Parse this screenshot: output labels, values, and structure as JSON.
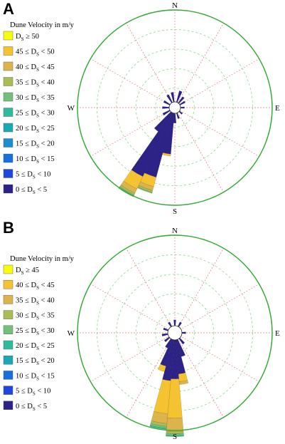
{
  "chart_data": [
    {
      "type": "rose",
      "panel_label": "A",
      "compass": {
        "north": "N",
        "east": "E",
        "south": "S",
        "west": "W"
      },
      "legend": {
        "title": "Dune Velocity in m/y",
        "placement": "left",
        "bins": [
          {
            "pre": "",
            "post": " ≥ 50",
            "color": "#f9fb0e"
          },
          {
            "pre": "45 ≤ ",
            "post": " < 50",
            "color": "#f5c232"
          },
          {
            "pre": "40 ≤ ",
            "post": " < 45",
            "color": "#dcb44b"
          },
          {
            "pre": "35 ≤ ",
            "post": " < 40",
            "color": "#a9bc55"
          },
          {
            "pre": "30 ≤ ",
            "post": " < 35",
            "color": "#72c07a"
          },
          {
            "pre": "25 ≤ ",
            "post": " < 30",
            "color": "#31b99e"
          },
          {
            "pre": "20 ≤ ",
            "post": " < 25",
            "color": "#19a8b5"
          },
          {
            "pre": "15 ≤ ",
            "post": " < 20",
            "color": "#1a8fd0"
          },
          {
            "pre": "10 ≤ ",
            "post": " < 15",
            "color": "#1671dc"
          },
          {
            "pre": "5 ≤ ",
            "post": " < 10",
            "color": "#1f47de"
          },
          {
            "pre": "0 ≤ ",
            "post": " < 5",
            "color": "#2c2287"
          }
        ]
      },
      "rmax": 100,
      "rings": [
        20,
        40,
        60,
        80
      ],
      "bar_width_deg": 10,
      "series": [
        {
          "dir": 20,
          "segs": [
            [
              0,
              12
            ]
          ]
        },
        {
          "dir": 40,
          "segs": [
            [
              0,
              8
            ]
          ]
        },
        {
          "dir": 60,
          "segs": [
            [
              0,
              6
            ]
          ]
        },
        {
          "dir": 90,
          "segs": [
            [
              0,
              4
            ]
          ]
        },
        {
          "dir": 130,
          "segs": [
            [
              0,
              4
            ]
          ]
        },
        {
          "dir": 160,
          "segs": [
            [
              0,
              6
            ]
          ]
        },
        {
          "dir": 180,
          "segs": [
            [
              0,
              10
            ]
          ]
        },
        {
          "dir": 190,
          "segs": [
            [
              0,
              42
            ],
            [
              9,
              2
            ]
          ]
        },
        {
          "dir": 200,
          "segs": [
            [
              0,
              68
            ],
            [
              9,
              10
            ],
            [
              8,
              4
            ],
            [
              7,
              2
            ],
            [
              6,
              1
            ]
          ]
        },
        {
          "dir": 210,
          "segs": [
            [
              0,
              72
            ],
            [
              9,
              14
            ],
            [
              8,
              5
            ],
            [
              7,
              2
            ],
            [
              6,
              2
            ]
          ]
        },
        {
          "dir": 220,
          "segs": [
            [
              0,
              24
            ]
          ]
        },
        {
          "dir": 240,
          "segs": [
            [
              0,
              8
            ]
          ]
        },
        {
          "dir": 270,
          "segs": [
            [
              0,
              7
            ]
          ]
        },
        {
          "dir": 300,
          "segs": [
            [
              0,
              7
            ]
          ]
        },
        {
          "dir": 330,
          "segs": [
            [
              0,
              9
            ]
          ]
        },
        {
          "dir": 350,
          "segs": [
            [
              0,
              10
            ]
          ]
        }
      ]
    },
    {
      "type": "rose",
      "panel_label": "B",
      "compass": {
        "north": "N",
        "east": "E",
        "south": "S",
        "west": "W"
      },
      "legend": {
        "title": "Dune Velocity in m/y",
        "placement": "left",
        "bins": [
          {
            "pre": "",
            "post": " ≥ 45",
            "color": "#f9fb0e"
          },
          {
            "pre": "40 ≤ ",
            "post": " < 45",
            "color": "#f5c232"
          },
          {
            "pre": "35 ≤ ",
            "post": " < 40",
            "color": "#dcb44b"
          },
          {
            "pre": "30 ≤ ",
            "post": " < 35",
            "color": "#a9bc55"
          },
          {
            "pre": "25 ≤ ",
            "post": " < 30",
            "color": "#72c07a"
          },
          {
            "pre": "20 ≤ ",
            "post": " < 25",
            "color": "#31b99e"
          },
          {
            "pre": "15 ≤ ",
            "post": " < 20",
            "color": "#19a8b5"
          },
          {
            "pre": "10 ≤ ",
            "post": " < 15",
            "color": "#1671dc"
          },
          {
            "pre": "5 ≤ ",
            "post": " < 10",
            "color": "#1f47de"
          },
          {
            "pre": "0 ≤ ",
            "post": " < 5",
            "color": "#2c2287"
          }
        ]
      },
      "rmax": 100,
      "rings": [
        20,
        40,
        60,
        80
      ],
      "bar_width_deg": 10,
      "series": [
        {
          "dir": 0,
          "segs": [
            [
              0,
              6
            ]
          ]
        },
        {
          "dir": 30,
          "segs": [
            [
              0,
              5
            ]
          ]
        },
        {
          "dir": 90,
          "segs": [
            [
              0,
              4
            ]
          ]
        },
        {
          "dir": 140,
          "segs": [
            [
              0,
              7
            ]
          ]
        },
        {
          "dir": 160,
          "segs": [
            [
              0,
              18
            ]
          ]
        },
        {
          "dir": 170,
          "segs": [
            [
              0,
              35
            ],
            [
              8,
              8
            ],
            [
              7,
              3
            ]
          ]
        },
        {
          "dir": 180,
          "segs": [
            [
              0,
              40
            ],
            [
              8,
              40
            ],
            [
              7,
              14
            ],
            [
              6,
              2
            ],
            [
              5,
              2
            ],
            [
              4,
              1
            ]
          ]
        },
        {
          "dir": 190,
          "segs": [
            [
              0,
              42
            ],
            [
              8,
              34
            ],
            [
              7,
              10
            ],
            [
              6,
              3
            ],
            [
              5,
              2
            ],
            [
              4,
              1
            ]
          ]
        },
        {
          "dir": 200,
          "segs": [
            [
              0,
              28
            ],
            [
              8,
              6
            ]
          ]
        },
        {
          "dir": 210,
          "segs": [
            [
              0,
              10
            ]
          ]
        },
        {
          "dir": 230,
          "segs": [
            [
              0,
              6
            ]
          ]
        },
        {
          "dir": 260,
          "segs": [
            [
              0,
              6
            ]
          ]
        },
        {
          "dir": 290,
          "segs": [
            [
              0,
              5
            ]
          ]
        },
        {
          "dir": 330,
          "segs": [
            [
              0,
              5
            ]
          ]
        }
      ]
    }
  ]
}
